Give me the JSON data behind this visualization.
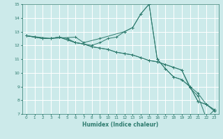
{
  "title": "",
  "xlabel": "Humidex (Indice chaleur)",
  "ylabel": "",
  "bg_color": "#cceaea",
  "grid_color": "#ffffff",
  "line_color": "#2e7b6e",
  "xlim": [
    -0.5,
    23.5
  ],
  "ylim": [
    7,
    15
  ],
  "yticks": [
    7,
    8,
    9,
    10,
    11,
    12,
    13,
    14,
    15
  ],
  "xticks": [
    0,
    1,
    2,
    3,
    4,
    5,
    6,
    7,
    8,
    9,
    10,
    11,
    12,
    13,
    14,
    15,
    16,
    17,
    18,
    19,
    20,
    21,
    22,
    23
  ],
  "lines": [
    {
      "x": [
        0,
        1,
        2,
        3,
        4,
        5,
        6,
        7,
        8,
        9,
        10,
        11,
        12,
        13,
        14,
        15,
        16,
        17,
        18,
        19,
        20,
        21,
        22,
        23
      ],
      "y": [
        12.7,
        12.6,
        12.5,
        12.5,
        12.6,
        12.5,
        12.2,
        12.1,
        12.0,
        12.2,
        12.5,
        12.6,
        13.0,
        13.3,
        14.3,
        15.0,
        11.0,
        10.3,
        9.7,
        9.5,
        9.0,
        7.9,
        7.7,
        7.3
      ]
    },
    {
      "x": [
        0,
        1,
        2,
        3,
        4,
        5,
        6,
        7,
        8,
        9,
        10,
        11,
        12,
        13,
        14,
        15,
        16,
        17,
        18,
        19,
        20,
        21,
        22,
        23
      ],
      "y": [
        12.7,
        12.6,
        12.5,
        12.5,
        12.6,
        12.4,
        12.2,
        12.1,
        11.9,
        11.8,
        11.7,
        11.5,
        11.4,
        11.3,
        11.1,
        10.9,
        10.8,
        10.6,
        10.4,
        10.2,
        9.0,
        8.5,
        7.7,
        7.2
      ]
    },
    {
      "x": [
        0,
        1,
        2,
        3,
        4,
        5,
        6,
        7,
        8,
        9,
        10,
        11,
        12,
        13,
        14,
        15,
        16,
        17,
        18,
        19,
        20,
        21,
        22,
        23
      ],
      "y": [
        12.7,
        12.6,
        12.5,
        12.5,
        12.6,
        12.4,
        12.2,
        12.1,
        11.9,
        11.8,
        11.7,
        11.5,
        11.4,
        11.3,
        11.1,
        10.9,
        10.8,
        10.6,
        10.4,
        10.2,
        8.9,
        8.3,
        6.7,
        7.3
      ]
    },
    {
      "x": [
        0,
        3,
        6,
        7,
        9,
        12,
        13,
        14,
        15,
        16,
        17,
        18,
        19,
        20,
        21,
        22,
        23
      ],
      "y": [
        12.7,
        12.5,
        12.6,
        12.2,
        12.5,
        13.0,
        13.3,
        14.3,
        15.0,
        11.0,
        10.3,
        9.7,
        9.5,
        9.0,
        7.9,
        7.7,
        7.3
      ]
    }
  ]
}
